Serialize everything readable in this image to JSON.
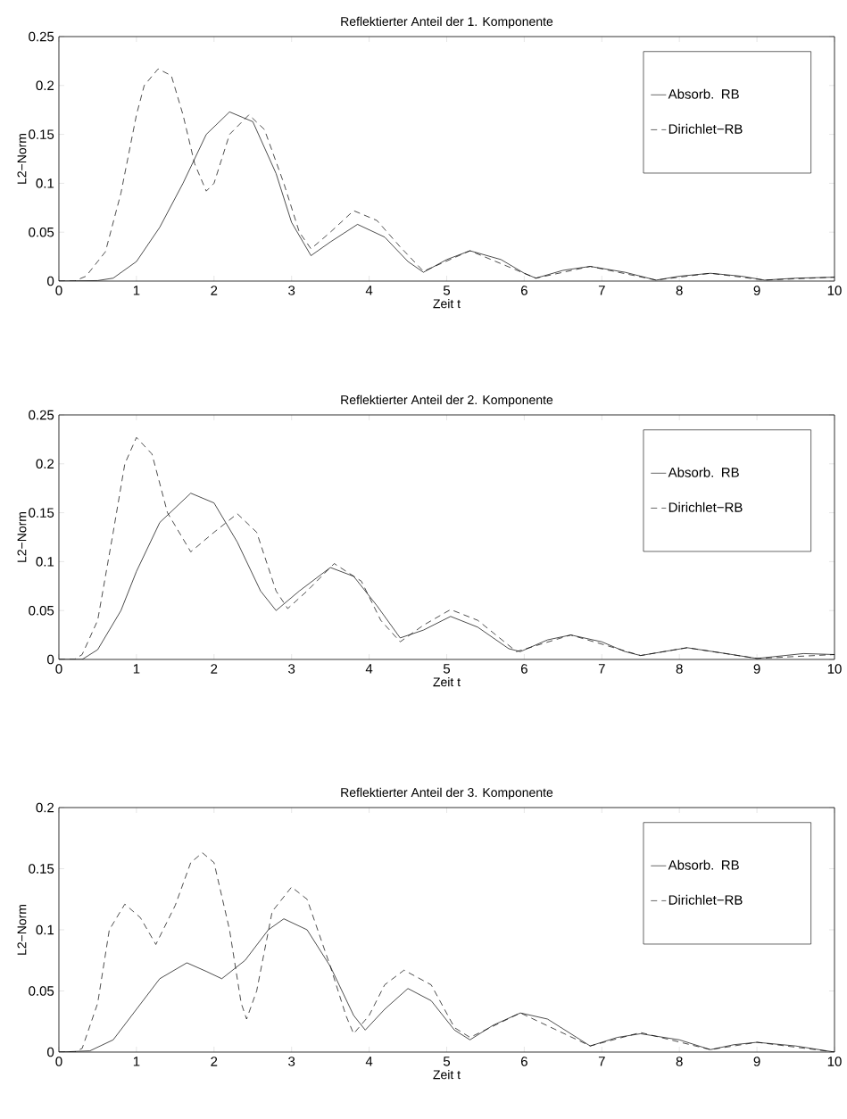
{
  "chart_data": [
    {
      "type": "line",
      "title": "Reflektierter Anteil der 1. Komponente",
      "xlabel": "Zeit t",
      "ylabel": "L2−Norm",
      "xlim": [
        0,
        10
      ],
      "ylim": [
        0,
        0.25
      ],
      "xticks": [
        0,
        1,
        2,
        3,
        4,
        5,
        6,
        7,
        8,
        9,
        10
      ],
      "yticks": [
        0,
        0.05,
        0.1,
        0.15,
        0.2,
        0.25
      ],
      "legend": "top right",
      "series": [
        {
          "name": "Absorb. RB",
          "color": "#000000",
          "line_style": "solid",
          "x": [
            0,
            0.5,
            0.7,
            1,
            1.3,
            1.6,
            1.9,
            2.2,
            2.5,
            2.8,
            3.0,
            3.25,
            3.5,
            3.85,
            4.2,
            4.5,
            4.7,
            5.0,
            5.3,
            5.7,
            6.0,
            6.15,
            6.5,
            6.85,
            7.3,
            7.7,
            8.0,
            8.4,
            8.8,
            9.1,
            9.5,
            10
          ],
          "values": [
            0,
            0.0005,
            0.003,
            0.02,
            0.055,
            0.1,
            0.15,
            0.173,
            0.163,
            0.11,
            0.06,
            0.026,
            0.04,
            0.058,
            0.045,
            0.02,
            0.009,
            0.022,
            0.031,
            0.022,
            0.008,
            0.003,
            0.011,
            0.015,
            0.009,
            0.001,
            0.005,
            0.008,
            0.005,
            0.001,
            0.003,
            0.004
          ]
        },
        {
          "name": "Dirichlet−RB",
          "color": "#000000",
          "line_style": "dashed",
          "x": [
            0,
            0.2,
            0.35,
            0.6,
            0.8,
            1.0,
            1.1,
            1.28,
            1.45,
            1.6,
            1.75,
            1.9,
            2.0,
            2.2,
            2.45,
            2.65,
            2.9,
            3.1,
            3.25,
            3.5,
            3.8,
            4.1,
            4.4,
            4.7,
            5.3,
            6.15,
            6.85,
            7.7,
            8.4,
            9.1,
            10
          ],
          "values": [
            0,
            0,
            0.005,
            0.03,
            0.09,
            0.17,
            0.2,
            0.217,
            0.21,
            0.17,
            0.12,
            0.092,
            0.1,
            0.15,
            0.17,
            0.155,
            0.1,
            0.05,
            0.033,
            0.05,
            0.072,
            0.062,
            0.035,
            0.01,
            0.031,
            0.003,
            0.015,
            0.001,
            0.008,
            0.001,
            0.004
          ]
        }
      ]
    },
    {
      "type": "line",
      "title": "Reflektierter Anteil der 2. Komponente",
      "xlabel": "Zeit t",
      "ylabel": "L2−Norm",
      "xlim": [
        0,
        10
      ],
      "ylim": [
        0,
        0.25
      ],
      "xticks": [
        0,
        1,
        2,
        3,
        4,
        5,
        6,
        7,
        8,
        9,
        10
      ],
      "yticks": [
        0,
        0.05,
        0.1,
        0.15,
        0.2,
        0.25
      ],
      "legend": "top right",
      "series": [
        {
          "name": "Absorb. RB",
          "color": "#000000",
          "line_style": "solid",
          "x": [
            0,
            0.3,
            0.5,
            0.8,
            1.0,
            1.3,
            1.7,
            2.0,
            2.3,
            2.6,
            2.8,
            3.1,
            3.5,
            3.8,
            4.1,
            4.4,
            4.7,
            5.05,
            5.4,
            5.8,
            5.95,
            6.3,
            6.6,
            7.0,
            7.3,
            7.5,
            8.1,
            8.6,
            9.0,
            9.6,
            10
          ],
          "values": [
            0,
            0,
            0.01,
            0.05,
            0.09,
            0.14,
            0.17,
            0.16,
            0.12,
            0.07,
            0.05,
            0.07,
            0.094,
            0.085,
            0.055,
            0.022,
            0.03,
            0.044,
            0.033,
            0.011,
            0.008,
            0.02,
            0.025,
            0.018,
            0.008,
            0.004,
            0.012,
            0.006,
            0.001,
            0.006,
            0.005
          ]
        },
        {
          "name": "Dirichlet−RB",
          "color": "#000000",
          "line_style": "dashed",
          "x": [
            0,
            0.2,
            0.3,
            0.5,
            0.7,
            0.85,
            1.0,
            1.2,
            1.4,
            1.7,
            2.0,
            2.3,
            2.55,
            2.8,
            2.95,
            3.2,
            3.55,
            3.9,
            4.15,
            4.4,
            4.7,
            5.05,
            5.4,
            5.9,
            6.6,
            7.5,
            8.1,
            9.0,
            10
          ],
          "values": [
            0,
            0,
            0.005,
            0.04,
            0.13,
            0.2,
            0.227,
            0.21,
            0.15,
            0.11,
            0.13,
            0.149,
            0.13,
            0.07,
            0.052,
            0.07,
            0.098,
            0.08,
            0.04,
            0.018,
            0.035,
            0.051,
            0.04,
            0.008,
            0.025,
            0.004,
            0.012,
            0.001,
            0.005
          ]
        }
      ]
    },
    {
      "type": "line",
      "title": "Reflektierter Anteil der 3. Komponente",
      "xlabel": "Zeit t",
      "ylabel": "L2−Norm",
      "xlim": [
        0,
        10
      ],
      "ylim": [
        0,
        0.2
      ],
      "xticks": [
        0,
        1,
        2,
        3,
        4,
        5,
        6,
        7,
        8,
        9,
        10
      ],
      "yticks": [
        0,
        0.05,
        0.1,
        0.15,
        0.2
      ],
      "legend": "top right",
      "series": [
        {
          "name": "Absorb. RB",
          "color": "#000000",
          "line_style": "solid",
          "x": [
            0,
            0.4,
            0.7,
            1.0,
            1.3,
            1.65,
            1.9,
            2.1,
            2.4,
            2.7,
            2.9,
            3.2,
            3.5,
            3.8,
            3.95,
            4.2,
            4.5,
            4.8,
            5.1,
            5.3,
            5.6,
            5.95,
            6.3,
            6.85,
            7.2,
            7.5,
            8.0,
            8.4,
            8.7,
            9.0,
            9.5,
            10
          ],
          "values": [
            0,
            0.001,
            0.01,
            0.035,
            0.06,
            0.073,
            0.066,
            0.06,
            0.075,
            0.1,
            0.109,
            0.1,
            0.07,
            0.03,
            0.018,
            0.035,
            0.052,
            0.042,
            0.018,
            0.01,
            0.022,
            0.032,
            0.027,
            0.005,
            0.012,
            0.015,
            0.01,
            0.002,
            0.006,
            0.008,
            0.005,
            0
          ]
        },
        {
          "name": "Dirichlet−RB",
          "color": "#000000",
          "line_style": "dashed",
          "x": [
            0,
            0.2,
            0.3,
            0.5,
            0.65,
            0.85,
            1.05,
            1.25,
            1.5,
            1.7,
            1.85,
            2.0,
            2.2,
            2.35,
            2.42,
            2.55,
            2.75,
            3.0,
            3.2,
            3.5,
            3.7,
            3.8,
            4.0,
            4.2,
            4.45,
            4.8,
            5.1,
            5.3,
            5.95,
            6.85,
            7.5,
            8.4,
            9.0,
            10
          ],
          "values": [
            0,
            0,
            0.003,
            0.04,
            0.1,
            0.121,
            0.11,
            0.088,
            0.12,
            0.155,
            0.163,
            0.155,
            0.1,
            0.04,
            0.027,
            0.05,
            0.115,
            0.135,
            0.125,
            0.07,
            0.03,
            0.015,
            0.03,
            0.055,
            0.067,
            0.055,
            0.02,
            0.012,
            0.032,
            0.005,
            0.016,
            0.002,
            0.008,
            0
          ]
        }
      ]
    }
  ]
}
